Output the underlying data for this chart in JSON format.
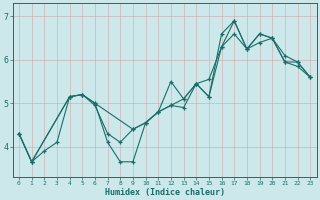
{
  "xlabel": "Humidex (Indice chaleur)",
  "ylabel": "",
  "bg_color": "#cce8ea",
  "grid_color": "#b0d0d3",
  "line_color": "#1a6e6a",
  "xlim": [
    -0.5,
    23.5
  ],
  "ylim": [
    3.3,
    7.3
  ],
  "xticks": [
    0,
    1,
    2,
    3,
    4,
    5,
    6,
    7,
    8,
    9,
    10,
    11,
    12,
    13,
    14,
    15,
    16,
    17,
    18,
    19,
    20,
    21,
    22,
    23
  ],
  "yticks": [
    4,
    5,
    6,
    7
  ],
  "lines": [
    {
      "x": [
        0,
        1,
        2,
        3,
        4,
        5,
        6,
        7,
        8,
        9,
        10,
        11,
        12,
        13,
        14,
        15,
        16,
        17,
        18,
        19,
        20,
        21,
        22,
        23
      ],
      "y": [
        4.3,
        3.65,
        3.9,
        4.1,
        5.15,
        5.2,
        4.95,
        4.3,
        4.1,
        4.4,
        4.55,
        4.8,
        4.95,
        5.1,
        5.45,
        5.55,
        6.3,
        6.6,
        6.25,
        6.4,
        6.5,
        5.95,
        5.85,
        5.6
      ]
    },
    {
      "x": [
        0,
        1,
        4,
        5,
        6,
        9,
        10,
        11,
        12,
        13,
        14,
        15,
        16,
        17,
        18,
        19,
        20,
        21,
        22,
        23
      ],
      "y": [
        4.3,
        3.65,
        5.15,
        5.2,
        5.0,
        4.4,
        4.55,
        4.8,
        5.5,
        5.1,
        5.45,
        5.15,
        6.6,
        6.9,
        6.25,
        6.6,
        6.5,
        6.1,
        5.95,
        5.6
      ]
    },
    {
      "x": [
        0,
        1,
        4,
        5,
        6,
        7,
        8,
        9,
        10,
        11,
        12,
        13,
        14,
        15,
        16,
        17,
        18,
        19,
        20,
        21,
        22,
        23
      ],
      "y": [
        4.3,
        3.65,
        5.15,
        5.2,
        5.0,
        4.1,
        3.65,
        3.65,
        4.55,
        4.8,
        4.95,
        4.9,
        5.45,
        5.15,
        6.3,
        6.9,
        6.25,
        6.6,
        6.5,
        5.95,
        5.95,
        5.6
      ]
    }
  ]
}
